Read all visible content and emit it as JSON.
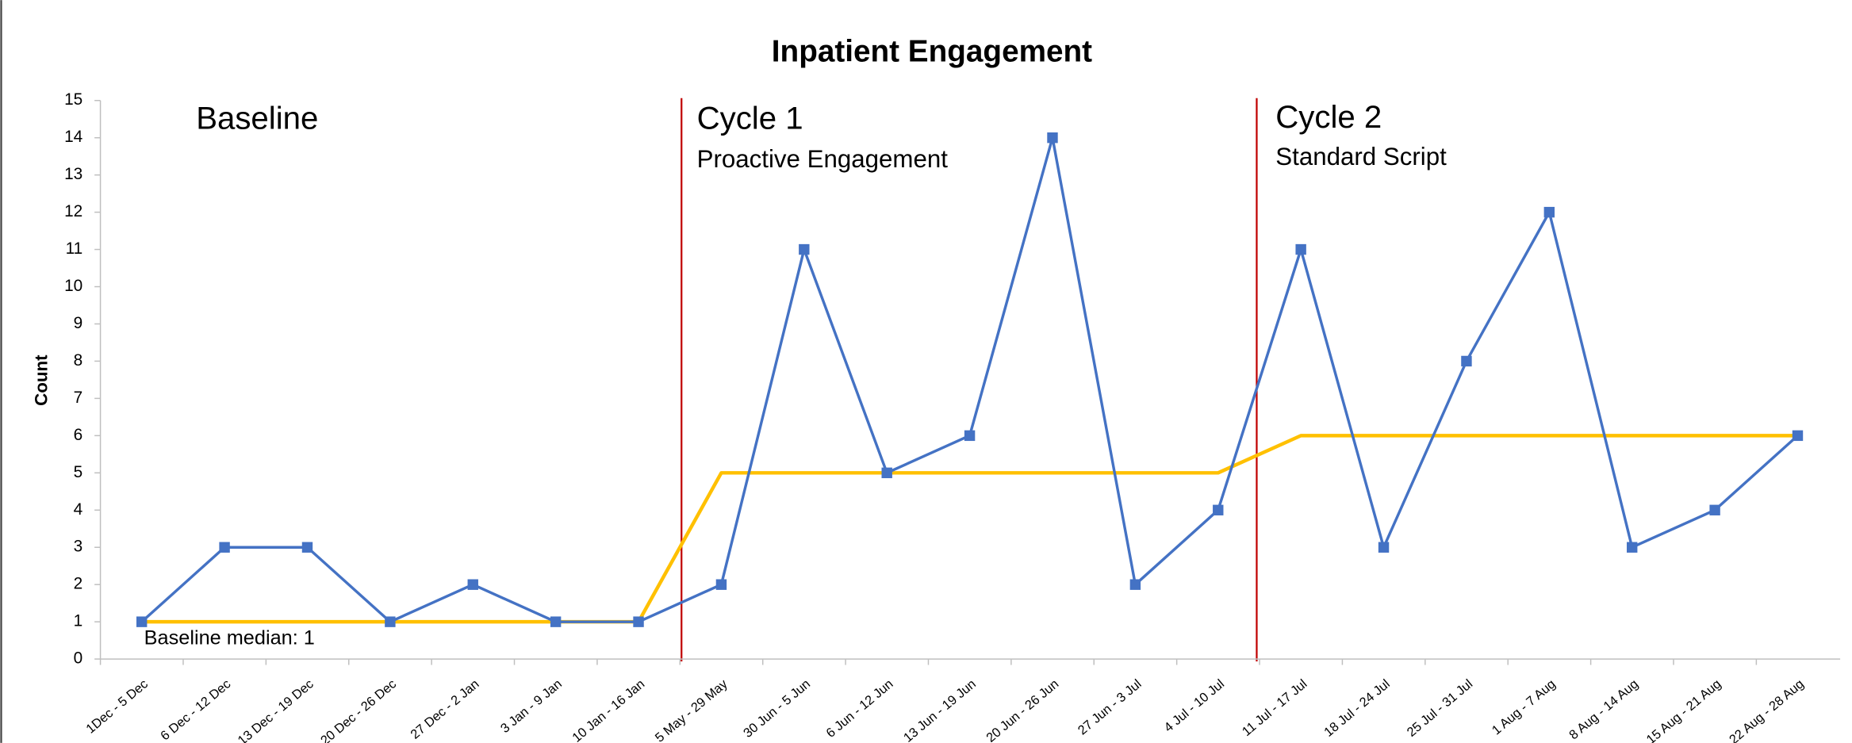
{
  "chart_data": {
    "type": "line",
    "title": "Inpatient Engagement",
    "ylabel": "Count",
    "categories": [
      "1Dec - 5 Dec",
      "6 Dec - 12 Dec",
      "13 Dec - 19 Dec",
      "20 Dec - 26 Dec",
      "27 Dec - 2 Jan",
      "3 Jan - 9 Jan",
      "10 Jan - 16 Jan",
      "5 May - 29 May",
      "30 Jun - 5 Jun",
      "6 Jun - 12 Jun",
      "13 Jun - 19 Jun",
      "20 Jun - 26 Jun",
      "27 Jun - 3 Jul",
      "4 Jul - 10 Jul",
      "11 Jul - 17 Jul",
      "18 Jul - 24 Jul",
      "25 Jul - 31 Jul",
      "1 Aug - 7 Aug",
      "8 Aug - 14 Aug",
      "15 Aug - 21 Aug",
      "22 Aug - 28 Aug"
    ],
    "series": [
      {
        "color": "#4472c4",
        "marker": "square",
        "values": [
          1,
          3,
          3,
          1,
          2,
          1,
          1,
          2,
          11,
          5,
          6,
          14,
          2,
          4,
          11,
          3,
          8,
          12,
          3,
          4,
          6
        ]
      },
      {
        "color": "#ffc000",
        "values": [
          1,
          1,
          1,
          1,
          1,
          1,
          1,
          5,
          5,
          5,
          5,
          5,
          5,
          5,
          6,
          6,
          6,
          6,
          6,
          6,
          6
        ]
      }
    ],
    "ylim": [
      0,
      15
    ],
    "yticks": [
      0,
      1,
      2,
      3,
      4,
      5,
      6,
      7,
      8,
      9,
      10,
      11,
      12,
      13,
      14,
      15
    ],
    "annotations": {
      "baseline": "Baseline",
      "cycle1": "Cycle 1",
      "cycle1_sub": "Proactive Engagement",
      "cycle2": "Cycle 2",
      "cycle2_sub": "Standard Script",
      "median": "Baseline median: 1"
    }
  }
}
